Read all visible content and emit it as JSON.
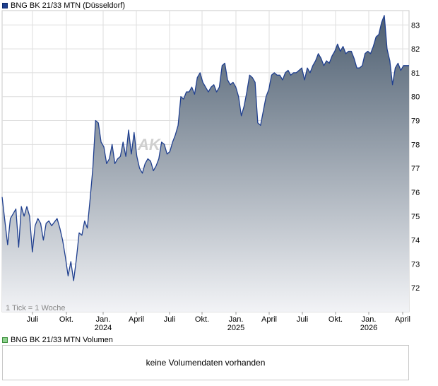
{
  "price_legend": {
    "label": "BNG BK 21/33 MTN (Düsseldorf)"
  },
  "volume_legend": {
    "label": "BNG BK 21/33 MTN Volumen"
  },
  "volume_panel": {
    "message": "keine Volumendaten vorhanden"
  },
  "colors": {
    "line": "#1f3f8f",
    "area_top": "#4d5e70",
    "area_bottom": "#f2f3f6",
    "grid": "#dedede"
  },
  "chart_data": {
    "type": "area",
    "title": "BNG BK 21/33 MTN (Düsseldorf)",
    "xlabel": "",
    "ylabel": "",
    "ylim": [
      71.0,
      83.6
    ],
    "grid": true,
    "y_ticks": [
      72,
      73,
      74,
      75,
      76,
      77,
      78,
      79,
      80,
      81,
      82,
      83
    ],
    "x_ticks": [
      "Juli",
      "Okt.",
      "Jan.",
      "April",
      "Juli",
      "Okt.",
      "Jan.",
      "April",
      "Juli",
      "Okt.",
      "Jan.",
      "April"
    ],
    "year_labels": [
      "2024",
      "2025",
      "2026"
    ],
    "tick_note": "1 Tick = 1 Woche",
    "watermark": "AK",
    "x_range_weeks": [
      0,
      148
    ],
    "series": [
      {
        "values": [
          [
            0,
            75.8
          ],
          [
            2,
            73.8
          ],
          [
            3,
            74.9
          ],
          [
            4,
            75.1
          ],
          [
            5,
            75.3
          ],
          [
            6,
            73.7
          ],
          [
            7,
            75.4
          ],
          [
            8,
            75.0
          ],
          [
            9,
            75.4
          ],
          [
            10,
            75.0
          ],
          [
            11,
            73.5
          ],
          [
            12,
            74.6
          ],
          [
            13,
            74.9
          ],
          [
            14,
            74.7
          ],
          [
            15,
            74.0
          ],
          [
            16,
            74.7
          ],
          [
            17,
            74.8
          ],
          [
            18,
            74.6
          ],
          [
            20,
            74.9
          ],
          [
            21,
            74.5
          ],
          [
            22,
            74.0
          ],
          [
            23,
            73.3
          ],
          [
            24,
            72.5
          ],
          [
            25,
            73.1
          ],
          [
            26,
            72.3
          ],
          [
            27,
            73.2
          ],
          [
            28,
            74.3
          ],
          [
            29,
            74.2
          ],
          [
            30,
            74.8
          ],
          [
            31,
            74.5
          ],
          [
            32,
            75.7
          ],
          [
            33,
            77.0
          ],
          [
            34,
            79.0
          ],
          [
            35,
            78.9
          ],
          [
            36,
            78.1
          ],
          [
            37,
            77.9
          ],
          [
            38,
            77.2
          ],
          [
            39,
            77.4
          ],
          [
            40,
            78.0
          ],
          [
            41,
            77.2
          ],
          [
            42,
            77.4
          ],
          [
            43,
            77.5
          ],
          [
            44,
            78.1
          ],
          [
            45,
            77.5
          ],
          [
            46,
            78.6
          ],
          [
            47,
            77.6
          ],
          [
            48,
            78.5
          ],
          [
            49,
            77.5
          ],
          [
            50,
            77.0
          ],
          [
            51,
            76.8
          ],
          [
            52,
            77.2
          ],
          [
            53,
            77.4
          ],
          [
            54,
            77.3
          ],
          [
            55,
            76.9
          ],
          [
            56,
            77.1
          ],
          [
            57,
            77.4
          ],
          [
            58,
            78.1
          ],
          [
            59,
            78.0
          ],
          [
            60,
            77.6
          ],
          [
            61,
            77.7
          ],
          [
            62,
            78.1
          ],
          [
            63,
            78.4
          ],
          [
            64,
            78.8
          ],
          [
            65,
            80.0
          ],
          [
            66,
            79.9
          ],
          [
            67,
            80.2
          ],
          [
            68,
            80.2
          ],
          [
            69,
            80.4
          ],
          [
            70,
            80.1
          ],
          [
            71,
            80.8
          ],
          [
            72,
            81.0
          ],
          [
            73,
            80.6
          ],
          [
            74,
            80.4
          ],
          [
            75,
            80.2
          ],
          [
            76,
            80.4
          ],
          [
            77,
            80.5
          ],
          [
            78,
            80.2
          ],
          [
            79,
            80.4
          ],
          [
            80,
            81.3
          ],
          [
            81,
            81.4
          ],
          [
            82,
            80.7
          ],
          [
            83,
            80.5
          ],
          [
            84,
            80.6
          ],
          [
            85,
            80.4
          ],
          [
            86,
            80.0
          ],
          [
            87,
            79.2
          ],
          [
            88,
            79.6
          ],
          [
            89,
            80.2
          ],
          [
            90,
            80.9
          ],
          [
            91,
            80.8
          ],
          [
            92,
            80.6
          ],
          [
            93,
            78.9
          ],
          [
            94,
            78.8
          ],
          [
            95,
            79.4
          ],
          [
            96,
            80.0
          ],
          [
            97,
            80.3
          ],
          [
            98,
            80.9
          ],
          [
            99,
            81.0
          ],
          [
            100,
            80.9
          ],
          [
            101,
            80.9
          ],
          [
            102,
            80.7
          ],
          [
            103,
            81.0
          ],
          [
            104,
            81.1
          ],
          [
            105,
            80.9
          ],
          [
            106,
            81.0
          ],
          [
            107,
            81.0
          ],
          [
            108,
            81.1
          ],
          [
            109,
            81.2
          ],
          [
            110,
            80.7
          ],
          [
            111,
            81.2
          ],
          [
            112,
            81.0
          ],
          [
            113,
            81.3
          ],
          [
            114,
            81.5
          ],
          [
            115,
            81.8
          ],
          [
            116,
            81.6
          ],
          [
            117,
            81.3
          ],
          [
            118,
            81.5
          ],
          [
            119,
            81.4
          ],
          [
            120,
            81.7
          ],
          [
            121,
            81.9
          ],
          [
            122,
            82.2
          ],
          [
            123,
            81.9
          ],
          [
            124,
            82.1
          ],
          [
            125,
            81.8
          ],
          [
            126,
            81.9
          ],
          [
            127,
            81.9
          ],
          [
            128,
            81.6
          ],
          [
            129,
            81.2
          ],
          [
            130,
            81.2
          ],
          [
            131,
            81.3
          ],
          [
            132,
            81.8
          ],
          [
            133,
            81.9
          ],
          [
            134,
            81.8
          ],
          [
            135,
            82.1
          ],
          [
            136,
            82.5
          ],
          [
            137,
            82.6
          ],
          [
            138,
            83.1
          ],
          [
            139,
            83.4
          ],
          [
            140,
            82.0
          ],
          [
            141,
            81.5
          ],
          [
            142,
            80.5
          ],
          [
            143,
            81.2
          ],
          [
            144,
            81.4
          ],
          [
            145,
            81.1
          ],
          [
            146,
            81.3
          ],
          [
            148,
            81.3
          ]
        ]
      }
    ]
  }
}
